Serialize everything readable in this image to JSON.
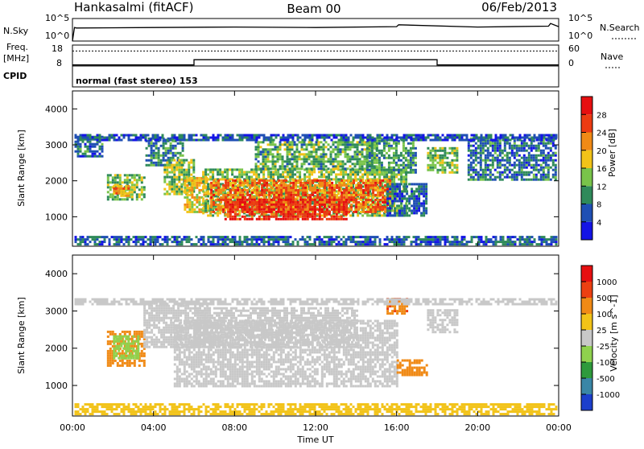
{
  "header": {
    "station": "Hankasalmi (fitACF)",
    "beam": "Beam 00",
    "date": "06/Feb/2013"
  },
  "chart_data": [
    {
      "type": "line",
      "panel": "noise",
      "left_label": "N.Sky",
      "right_label": "N.Search",
      "left_ticks": [
        "10^5",
        "10^0"
      ],
      "right_ticks": [
        "10^5",
        "10^0"
      ],
      "series": [
        {
          "x": [
            0,
            0.1,
            0.2,
            4,
            8,
            12,
            16,
            16.1,
            20,
            23.5,
            23.6,
            24
          ],
          "y": [
            0,
            3.0,
            2.9,
            3.0,
            3.1,
            3.0,
            3.2,
            3.6,
            3.1,
            3.3,
            3.9,
            3.2
          ]
        }
      ],
      "ylim": [
        0,
        5
      ]
    },
    {
      "type": "line",
      "panel": "frequency",
      "left_label_top": "Freq.",
      "left_label_unit": "[MHz]",
      "right_label": "Nave",
      "left_ticks": [
        "18",
        "8"
      ],
      "right_ticks": [
        "60",
        "0"
      ],
      "series": [
        {
          "name": "freq",
          "x": [
            0,
            6,
            6,
            18,
            18,
            24
          ],
          "y": [
            8.5,
            8.5,
            11,
            11,
            8.5,
            8.5
          ]
        },
        {
          "name": "nave",
          "x": [
            0,
            24
          ],
          "y": [
            43,
            43
          ]
        }
      ],
      "ylim": [
        8,
        18
      ]
    },
    {
      "type": "table",
      "panel": "cpid",
      "label": "CPID",
      "text": "normal (fast stereo) 153"
    },
    {
      "type": "heatmap",
      "panel": "power",
      "ylabel": "Slant Range [km]",
      "xlim": [
        0,
        24
      ],
      "ylim": [
        180,
        4500
      ],
      "yticks": [
        "1000",
        "2000",
        "3000",
        "4000"
      ],
      "colorbar": {
        "label": "Power [dB]",
        "ticks": [
          "4",
          "8",
          "12",
          "16",
          "20",
          "24",
          "28"
        ],
        "colors": [
          "#1414e6",
          "#1f4fb4",
          "#2f8a5a",
          "#79c44a",
          "#f2c318",
          "#f08a16",
          "#ec3b12",
          "#e60f10"
        ]
      },
      "regions": [
        {
          "t": [
            0.1,
            1.5
          ],
          "r": [
            2650,
            3250
          ],
          "v": 8
        },
        {
          "t": [
            1.7,
            3.5
          ],
          "r": [
            1450,
            2150
          ],
          "v": 14
        },
        {
          "t": [
            2.0,
            2.8
          ],
          "r": [
            1550,
            1850
          ],
          "v": 22
        },
        {
          "t": [
            3.6,
            5.4
          ],
          "r": [
            2400,
            3200
          ],
          "v": 9
        },
        {
          "t": [
            4.5,
            6.0
          ],
          "r": [
            1600,
            2600
          ],
          "v": 14
        },
        {
          "t": [
            5.5,
            6.6
          ],
          "r": [
            1100,
            2100
          ],
          "v": 18
        },
        {
          "t": [
            6.4,
            16.5
          ],
          "r": [
            1000,
            2300
          ],
          "v": 14
        },
        {
          "t": [
            6.8,
            15.7
          ],
          "r": [
            1100,
            2000
          ],
          "v": 24
        },
        {
          "t": [
            7.5,
            13.5
          ],
          "r": [
            900,
            1500
          ],
          "v": 28
        },
        {
          "t": [
            9.0,
            15.0
          ],
          "r": [
            2300,
            3100
          ],
          "v": 12
        },
        {
          "t": [
            14.5,
            17.0
          ],
          "r": [
            2200,
            3200
          ],
          "v": 11
        },
        {
          "t": [
            15.5,
            17.5
          ],
          "r": [
            1000,
            1900
          ],
          "v": 7
        },
        {
          "t": [
            17.5,
            19.0
          ],
          "r": [
            2200,
            2900
          ],
          "v": 13
        },
        {
          "t": [
            19.5,
            23.8
          ],
          "r": [
            2000,
            3200
          ],
          "v": 8
        },
        {
          "t": [
            0.1,
            23.9
          ],
          "r": [
            200,
            450
          ],
          "v": 7
        },
        {
          "t": [
            0.1,
            23.9
          ],
          "r": [
            3100,
            3280
          ],
          "v": 6
        }
      ]
    },
    {
      "type": "heatmap",
      "panel": "velocity",
      "ylabel": "Slant Range [km]",
      "xlabel": "Time UT",
      "xlim": [
        0,
        24
      ],
      "ylim": [
        180,
        4500
      ],
      "xticks": [
        "00:00",
        "04:00",
        "08:00",
        "12:00",
        "16:00",
        "20:00",
        "00:00"
      ],
      "yticks": [
        "1000",
        "2000",
        "3000",
        "4000"
      ],
      "colorbar": {
        "label": "Velocity [m s^-1]",
        "ticks": [
          "1000",
          "500",
          "100",
          "25",
          "-25",
          "-100",
          "-500",
          "-1000"
        ],
        "colors": [
          "#1c3fcc",
          "#3a86a6",
          "#2e9a3c",
          "#8fd24e",
          "#c8c8c8",
          "#f2c318",
          "#f08a16",
          "#ec4012",
          "#e60f10"
        ]
      },
      "regions": [
        {
          "t": [
            1.7,
            3.5
          ],
          "r": [
            1500,
            2450
          ],
          "v": -200
        },
        {
          "t": [
            2.0,
            3.3
          ],
          "r": [
            1700,
            2300
          ],
          "v": 60
        },
        {
          "t": [
            3.5,
            6.8
          ],
          "r": [
            2000,
            3200
          ],
          "v": 0
        },
        {
          "t": [
            5.0,
            16.0
          ],
          "r": [
            950,
            2700
          ],
          "v": 0
        },
        {
          "t": [
            6.0,
            14.0
          ],
          "r": [
            2000,
            3100
          ],
          "v": 0
        },
        {
          "t": [
            15.5,
            16.5
          ],
          "r": [
            2900,
            3300
          ],
          "v": -400
        },
        {
          "t": [
            16.0,
            17.5
          ],
          "r": [
            1250,
            1650
          ],
          "v": -300
        },
        {
          "t": [
            17.5,
            19.0
          ],
          "r": [
            2400,
            3000
          ],
          "v": 0
        },
        {
          "t": [
            0.1,
            23.9
          ],
          "r": [
            200,
            500
          ],
          "v": -50
        },
        {
          "t": [
            0.1,
            23.9
          ],
          "r": [
            3150,
            3300
          ],
          "v": 0
        }
      ]
    }
  ]
}
